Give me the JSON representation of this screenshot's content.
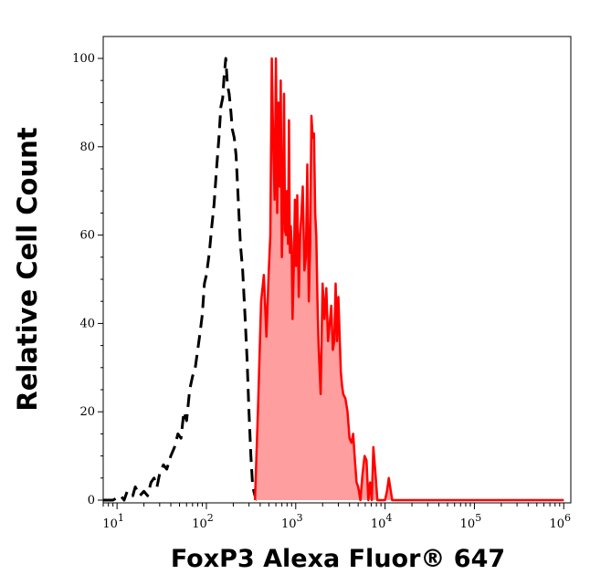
{
  "chart_data": {
    "type": "area",
    "xlabel": "FoxP3 Alexa Fluor® 647",
    "ylabel": "Relative Cell Count",
    "x_scale": "log",
    "xlim": [
      7,
      1200000
    ],
    "ylim": [
      0,
      100
    ],
    "grid": false,
    "legend": "none",
    "x_ticks": [
      {
        "value": 10,
        "base": "10",
        "exp": "1"
      },
      {
        "value": 100,
        "base": "10",
        "exp": "2"
      },
      {
        "value": 1000,
        "base": "10",
        "exp": "3"
      },
      {
        "value": 10000,
        "base": "10",
        "exp": "4"
      },
      {
        "value": 100000,
        "base": "10",
        "exp": "5"
      },
      {
        "value": 1000000,
        "base": "10",
        "exp": "6"
      }
    ],
    "y_ticks": [
      {
        "value": 0,
        "label": "0"
      },
      {
        "value": 20,
        "label": "20"
      },
      {
        "value": 40,
        "label": "40"
      },
      {
        "value": 60,
        "label": "60"
      },
      {
        "value": 80,
        "label": "80"
      },
      {
        "value": 100,
        "label": "100"
      }
    ],
    "series": [
      {
        "style": "dashed",
        "color": "#000000",
        "x": [
          7,
          9,
          11,
          12,
          13,
          15,
          16,
          18,
          20,
          22,
          24,
          26,
          28,
          30,
          33,
          36,
          40,
          44,
          48,
          52,
          56,
          60,
          65,
          70,
          75,
          80,
          85,
          90,
          95,
          100,
          108,
          115,
          122,
          130,
          138,
          145,
          152,
          158,
          165,
          172,
          180,
          188,
          195,
          205,
          215,
          225,
          240,
          255,
          270,
          285,
          300,
          315,
          330,
          350,
          370
        ],
        "y": [
          0,
          0,
          1,
          0,
          2,
          1,
          3,
          1,
          2,
          1,
          4,
          5,
          3,
          6,
          8,
          7,
          10,
          12,
          15,
          14,
          20,
          18,
          25,
          28,
          30,
          34,
          38,
          42,
          49,
          51,
          56,
          62,
          67,
          75,
          82,
          89,
          91,
          96,
          100,
          94,
          92,
          88,
          84,
          82,
          78,
          70,
          58,
          52,
          42,
          32,
          20,
          10,
          3,
          1,
          0
        ]
      },
      {
        "style": "filled",
        "color": "#ff0000",
        "fill": "#ff9e9e",
        "x": [
          350,
          380,
          410,
          440,
          470,
          500,
          520,
          540,
          560,
          580,
          600,
          620,
          640,
          660,
          680,
          700,
          720,
          740,
          760,
          780,
          800,
          820,
          840,
          860,
          880,
          900,
          920,
          950,
          980,
          1010,
          1040,
          1080,
          1120,
          1160,
          1200,
          1250,
          1300,
          1350,
          1400,
          1450,
          1500,
          1550,
          1600,
          1650,
          1700,
          1750,
          1800,
          1900,
          2000,
          2100,
          2200,
          2300,
          2400,
          2500,
          2600,
          2700,
          2800,
          2900,
          3000,
          3100,
          3200,
          3300,
          3400,
          3600,
          3800,
          4000,
          4200,
          4400,
          4600,
          4800,
          5000,
          5300,
          5600,
          5900,
          6200,
          6500,
          6800,
          7100,
          7400,
          7800,
          8200,
          8600,
          9000,
          9500,
          10000,
          10500,
          11000,
          12000,
          13000,
          15000,
          20000,
          50000,
          100000,
          500000,
          1000000
        ],
        "y": [
          0,
          22,
          45,
          51,
          37,
          52,
          60,
          100,
          80,
          68,
          100,
          65,
          90,
          71,
          95,
          55,
          65,
          92,
          61,
          60,
          70,
          58,
          86,
          56,
          62,
          58,
          41,
          52,
          68,
          53,
          69,
          46,
          60,
          65,
          71,
          52,
          55,
          76,
          45,
          58,
          87,
          82,
          83,
          65,
          60,
          45,
          35,
          24,
          49,
          41,
          48,
          36,
          40,
          44,
          34,
          36,
          49,
          36,
          46,
          37,
          29,
          26,
          24,
          23,
          20,
          14,
          13,
          15,
          9,
          4,
          3,
          0,
          6,
          10,
          9,
          0,
          4,
          0,
          12,
          6,
          0,
          0,
          0,
          0,
          0,
          2,
          5,
          0,
          0,
          0,
          0,
          0,
          0,
          0,
          0
        ]
      }
    ]
  }
}
